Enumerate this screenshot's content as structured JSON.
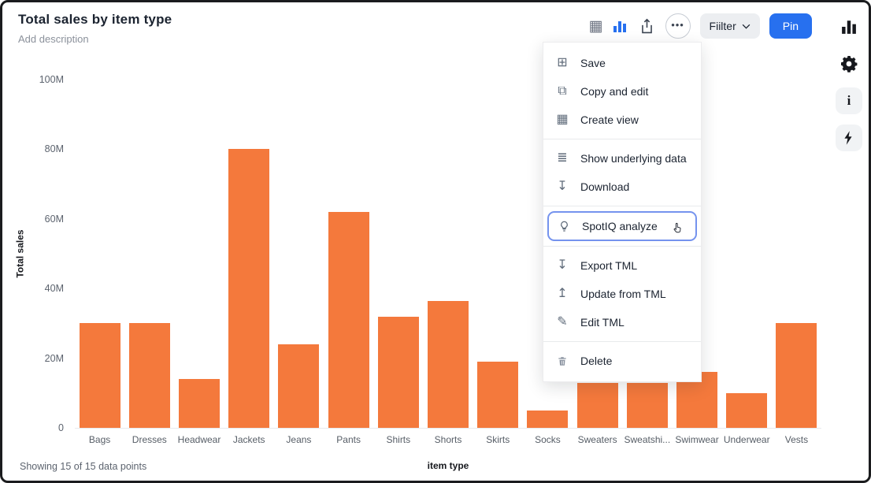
{
  "header": {
    "title": "Total sales by item type",
    "subtitle": "Add description"
  },
  "toolbar": {
    "filter_label": "Fiilter",
    "pin_label": "Pin",
    "icons": [
      "table-view-icon",
      "chart-view-icon",
      "share-icon",
      "more-options-icon"
    ]
  },
  "rail": {
    "icons": [
      "bar-chart-icon",
      "gear-icon",
      "info-icon",
      "lightning-icon"
    ]
  },
  "menu": {
    "groups": [
      {
        "items": [
          {
            "icon": "save-icon",
            "label": "Save"
          },
          {
            "icon": "copy-icon",
            "label": "Copy and edit"
          },
          {
            "icon": "create-view-icon",
            "label": "Create view"
          }
        ]
      },
      {
        "items": [
          {
            "icon": "underlying-data-icon",
            "label": "Show underlying data"
          },
          {
            "icon": "download-icon",
            "label": "Download"
          }
        ]
      },
      {
        "items": [
          {
            "icon": "spotiq-icon",
            "label": "SpotIQ analyze",
            "highlighted": true,
            "cursor": true
          }
        ]
      },
      {
        "items": [
          {
            "icon": "export-icon",
            "label": "Export TML"
          },
          {
            "icon": "update-icon",
            "label": "Update from TML"
          },
          {
            "icon": "edit-icon",
            "label": "Edit TML"
          }
        ]
      },
      {
        "items": [
          {
            "icon": "delete-icon",
            "label": "Delete"
          }
        ]
      }
    ]
  },
  "chart_data": {
    "type": "bar",
    "title": "Total sales by item type",
    "xlabel": "item type",
    "ylabel": "Total sales",
    "categories": [
      "Bags",
      "Dresses",
      "Headwear",
      "Jackets",
      "Jeans",
      "Pants",
      "Shirts",
      "Shorts",
      "Skirts",
      "Socks",
      "Sweaters",
      "Sweatshi...",
      "Swimwear",
      "Underwear",
      "Vests"
    ],
    "values": [
      30,
      30,
      14,
      80,
      24,
      62,
      32,
      36.5,
      19,
      5,
      13,
      13,
      16,
      10,
      30
    ],
    "value_unit": "M",
    "ylim": [
      0,
      100
    ],
    "yticks": [
      "0",
      "20M",
      "40M",
      "60M",
      "80M",
      "100M"
    ],
    "bar_color": "#F4793C",
    "grid": false,
    "legend": false
  },
  "status": {
    "showing": "Showing 15 of 15 data points"
  },
  "colors": {
    "accent_blue": "#2770EF",
    "bar_orange": "#F4793C",
    "highlight_border": "#7593EE"
  }
}
